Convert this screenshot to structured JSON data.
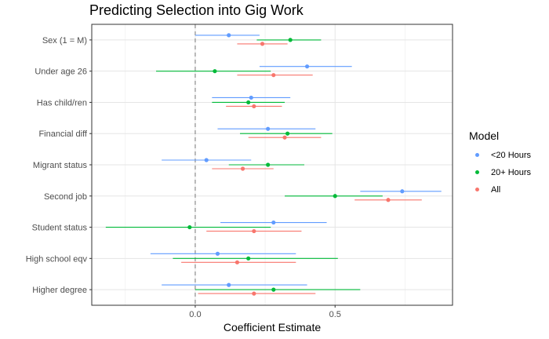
{
  "chart_data": {
    "type": "coefficient-plot",
    "title": "Predicting Selection into Gig Work",
    "xlabel": "Coefficient Estimate",
    "ylabel": "",
    "xlim": [
      -0.37,
      0.92
    ],
    "x_ticks": [
      0.0,
      0.5
    ],
    "x_tick_labels": [
      "0.0",
      "0.5"
    ],
    "reference_line": 0,
    "grid": true,
    "legend_title": "Model",
    "legend_position": "right",
    "categories": [
      "Sex (1 = M)",
      "Under age 26",
      "Has child/ren",
      "Financial diff",
      "Migrant status",
      "Second job",
      "Student status",
      "High school eqv",
      "Higher degree"
    ],
    "series": [
      {
        "name": "<20 Hours",
        "color": "#619CFF",
        "estimates": [
          0.12,
          0.4,
          0.2,
          0.26,
          0.04,
          0.74,
          0.28,
          0.08,
          0.12
        ],
        "lower": [
          0.0,
          0.23,
          0.06,
          0.08,
          -0.12,
          0.59,
          0.09,
          -0.16,
          -0.12
        ],
        "upper": [
          0.23,
          0.56,
          0.34,
          0.43,
          0.2,
          0.88,
          0.47,
          0.36,
          0.4
        ]
      },
      {
        "name": "20+ Hours",
        "color": "#00BA38",
        "estimates": [
          0.34,
          0.07,
          0.19,
          0.33,
          0.26,
          0.5,
          -0.02,
          0.19,
          0.28
        ],
        "lower": [
          0.22,
          -0.14,
          0.06,
          0.16,
          0.12,
          0.32,
          -0.32,
          -0.08,
          0.0
        ],
        "upper": [
          0.45,
          0.27,
          0.32,
          0.49,
          0.39,
          0.67,
          0.27,
          0.51,
          0.59
        ]
      },
      {
        "name": "All",
        "color": "#F8766D",
        "estimates": [
          0.24,
          0.28,
          0.21,
          0.32,
          0.17,
          0.69,
          0.21,
          0.15,
          0.21
        ],
        "lower": [
          0.15,
          0.15,
          0.11,
          0.19,
          0.06,
          0.57,
          0.04,
          -0.05,
          0.01
        ],
        "upper": [
          0.33,
          0.42,
          0.31,
          0.45,
          0.28,
          0.81,
          0.38,
          0.36,
          0.43
        ]
      }
    ],
    "legend_order": [
      0,
      1,
      2
    ]
  }
}
